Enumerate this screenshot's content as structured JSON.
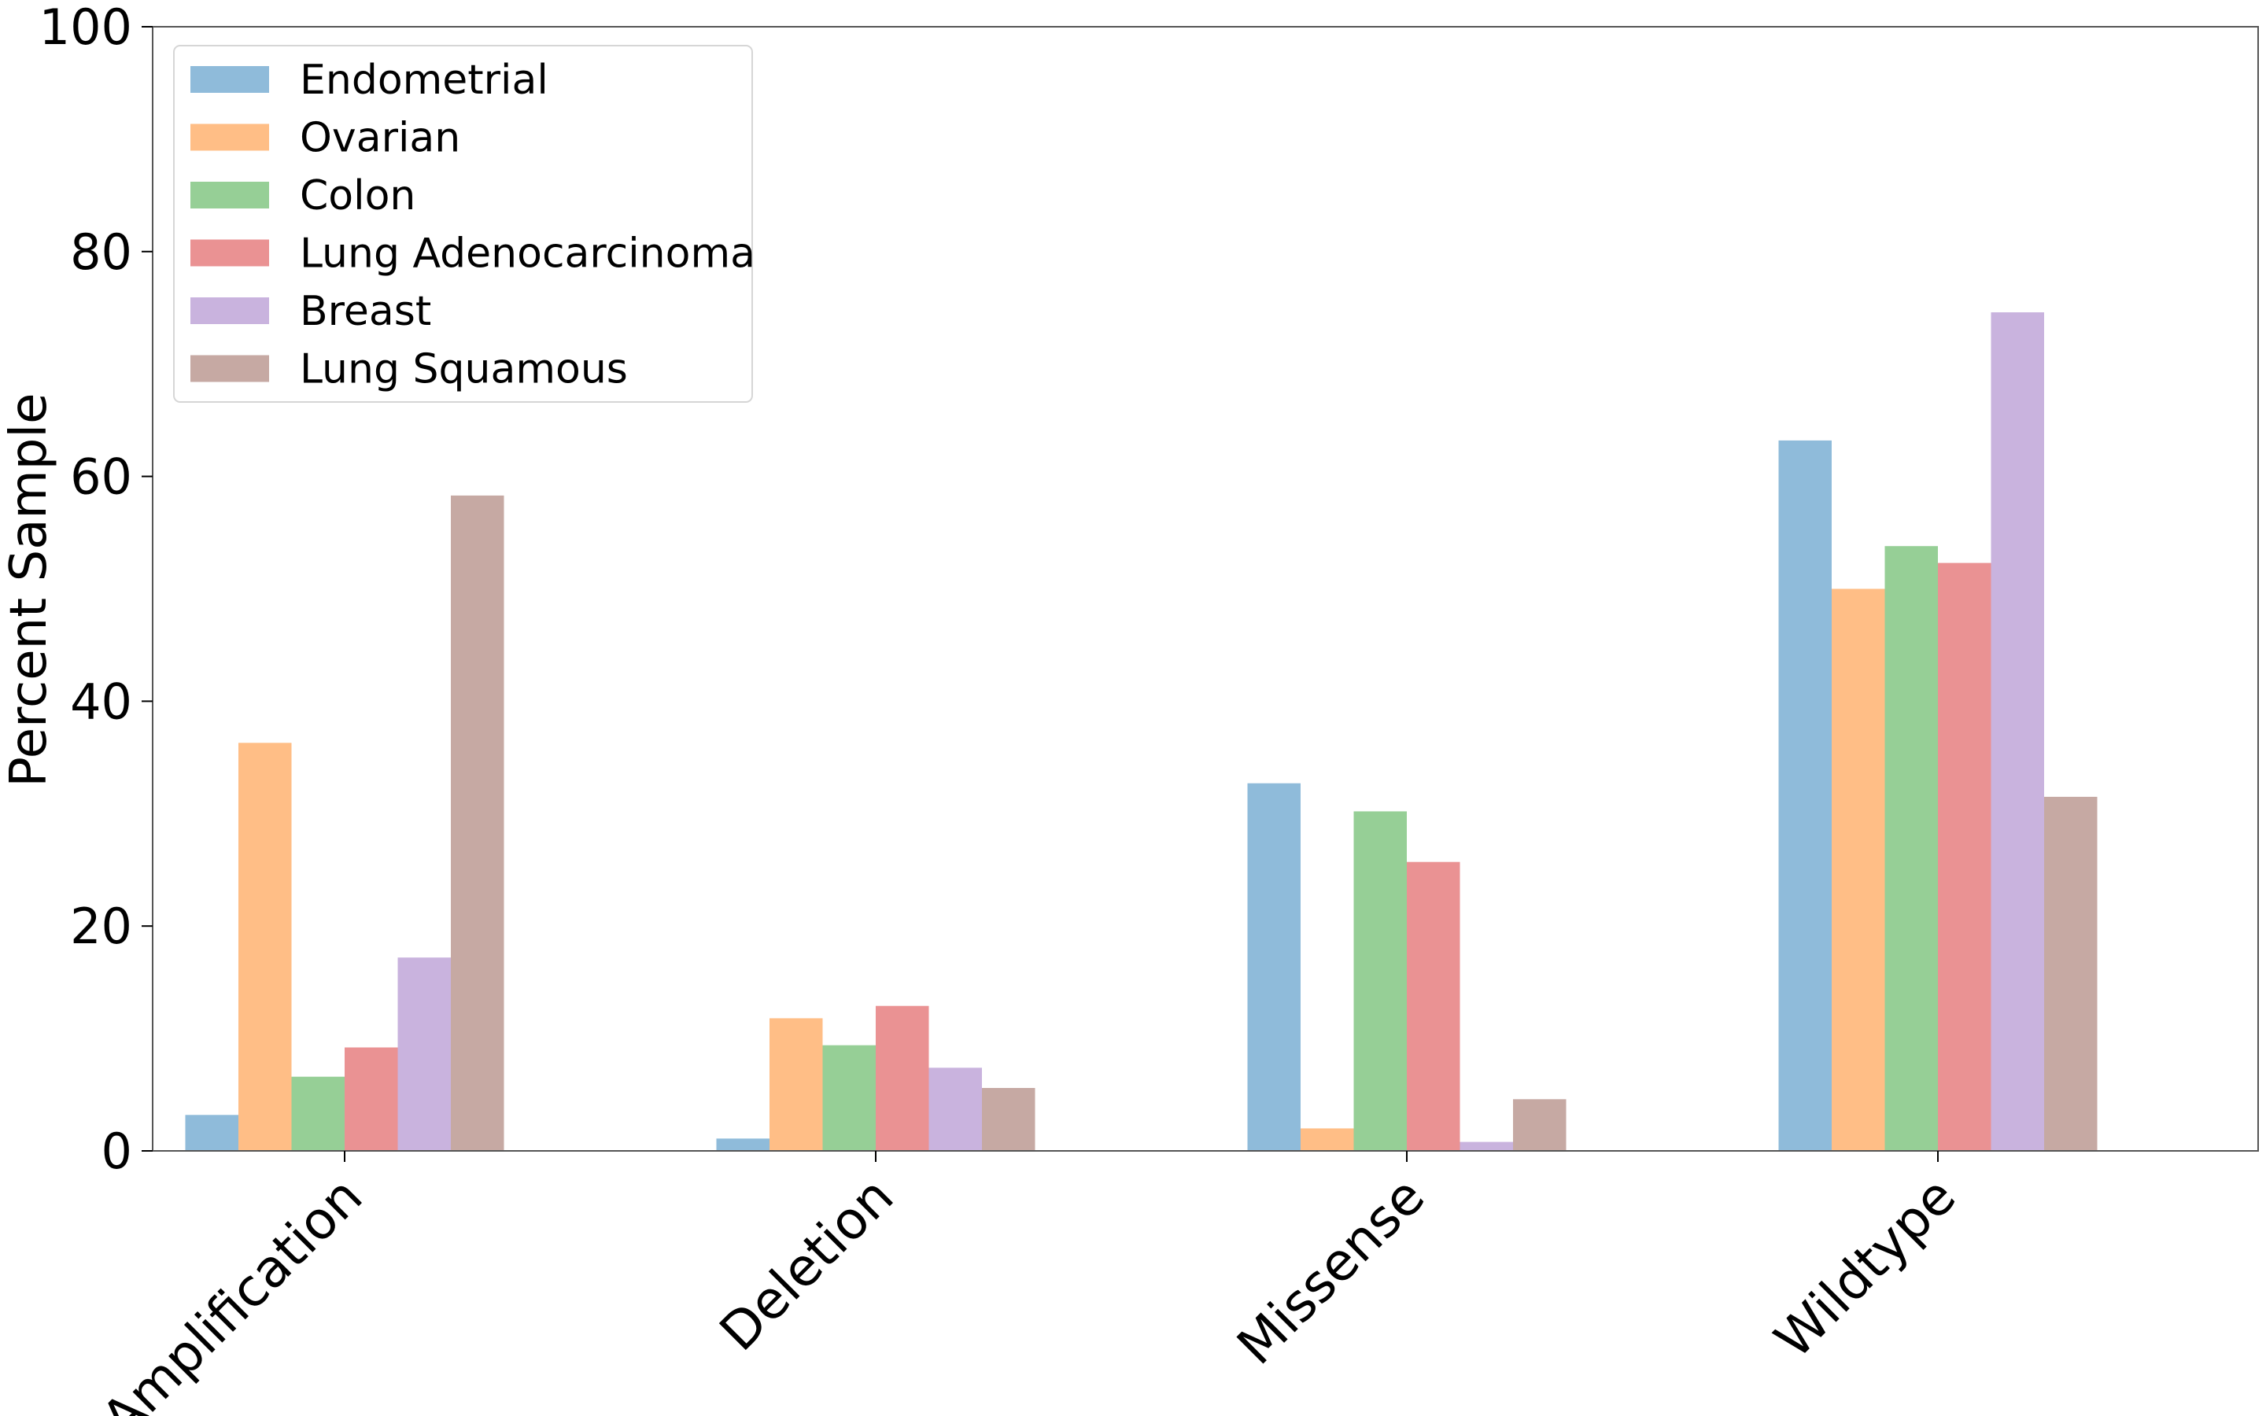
{
  "chart_data": {
    "type": "bar",
    "title": "",
    "xlabel": "",
    "ylabel": "Percent Sample",
    "ylim": [
      0,
      100
    ],
    "yticks": [
      "0",
      "20",
      "40",
      "60",
      "80",
      "100"
    ],
    "categories": [
      "Amplification",
      "Deletion",
      "Missense",
      "Wildtype"
    ],
    "series": [
      {
        "name": "Endometrial",
        "color": "#8fbbda",
        "values": [
          3.2,
          1.1,
          32.7,
          63.2
        ]
      },
      {
        "name": "Ovarian",
        "color": "#ffbe86",
        "values": [
          36.3,
          11.8,
          2.0,
          50.0
        ]
      },
      {
        "name": "Colon",
        "color": "#96cf96",
        "values": [
          6.6,
          9.4,
          30.2,
          53.8
        ]
      },
      {
        "name": "Lung Adenocarcinoma",
        "color": "#ea9293",
        "values": [
          9.2,
          12.9,
          25.7,
          52.3
        ]
      },
      {
        "name": "Breast",
        "color": "#c9b3de",
        "values": [
          17.2,
          7.4,
          0.8,
          74.6
        ]
      },
      {
        "name": "Lung Squamous",
        "color": "#c6a9a3",
        "values": [
          58.3,
          5.6,
          4.6,
          31.5
        ]
      }
    ],
    "legend_position": "top-left",
    "grid": false
  }
}
